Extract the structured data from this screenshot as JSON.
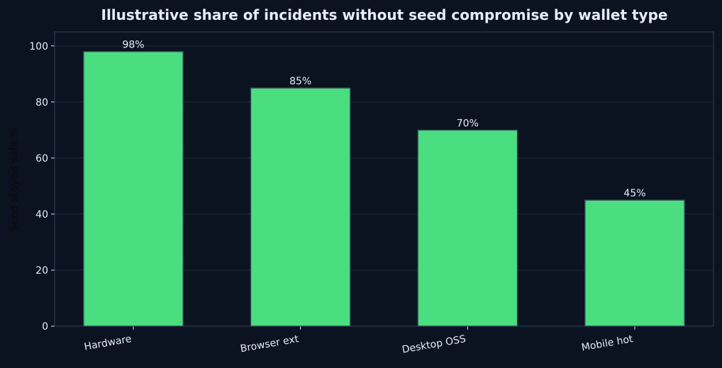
{
  "chart_data": {
    "type": "bar",
    "title": "Illustrative share of incidents without seed compromise by wallet type",
    "xlabel": "",
    "ylabel": "Seed stayed safe %",
    "categories": [
      "Hardware",
      "Browser ext",
      "Desktop OSS",
      "Mobile hot"
    ],
    "values": [
      98,
      85,
      70,
      45
    ],
    "data_labels": [
      "98%",
      "85%",
      "70%",
      "45%"
    ],
    "ylim": [
      0,
      105
    ],
    "yticks": [
      0,
      20,
      40,
      60,
      80,
      100
    ],
    "grid": true,
    "legend": false
  },
  "colors": {
    "background": "#0b1220",
    "bar_fill": "#4ade80",
    "bar_edge": "#334155",
    "grid": "#1e293b",
    "axes_frame": "#334155",
    "text": "#e6edf7",
    "ylabel_text": "#0b0b0b"
  }
}
